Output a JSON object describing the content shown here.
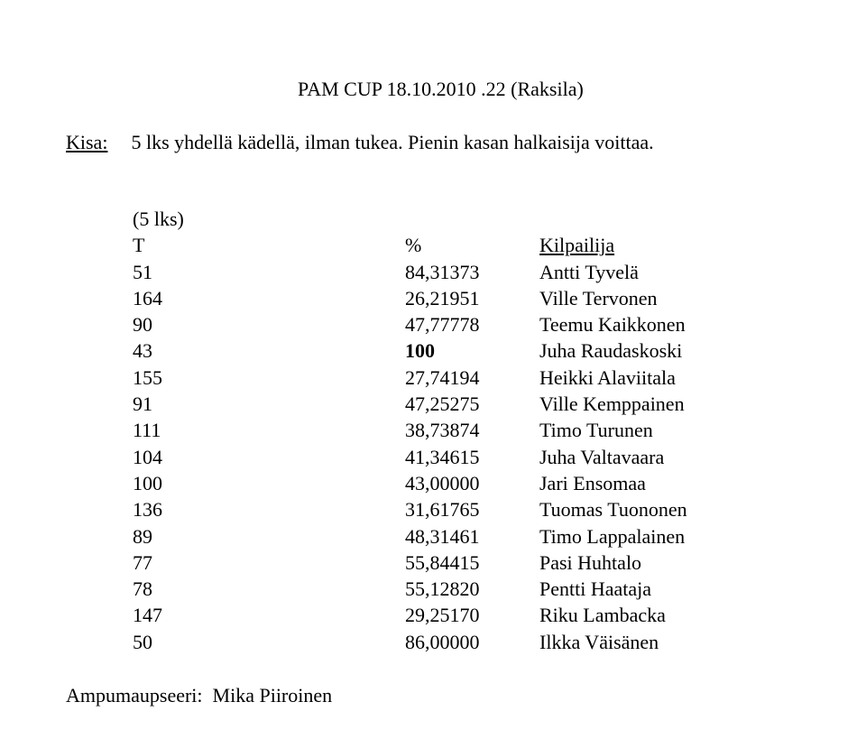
{
  "title": "PAM CUP  18.10.2010  .22  (Raksila)",
  "kisa": {
    "label": "Kisa:",
    "text": "5 lks yhdellä kädellä, ilman tukea. Pienin kasan halkaisija voittaa."
  },
  "table": {
    "caption": "(5 lks)",
    "headers": [
      "T",
      "%",
      "Kilpailija"
    ],
    "rows": [
      {
        "t": "51",
        "pct": "84,31373",
        "name": "Antti Tyvelä"
      },
      {
        "t": "164",
        "pct": "26,21951",
        "name": "Ville Tervonen"
      },
      {
        "t": "90",
        "pct": "47,77778",
        "name": "Teemu Kaikkonen"
      },
      {
        "t": "43",
        "pct": "100",
        "name": "Juha Raudaskoski",
        "bold": true
      },
      {
        "t": "155",
        "pct": "27,74194",
        "name": "Heikki Alaviitala"
      },
      {
        "t": "91",
        "pct": "47,25275",
        "name": "Ville Kemppainen"
      },
      {
        "t": "111",
        "pct": "38,73874",
        "name": "Timo Turunen"
      },
      {
        "t": "104",
        "pct": "41,34615",
        "name": "Juha Valtavaara"
      },
      {
        "t": "100",
        "pct": "43,00000",
        "name": "Jari Ensomaa"
      },
      {
        "t": "136",
        "pct": "31,61765",
        "name": "Tuomas Tuononen"
      },
      {
        "t": "89",
        "pct": "48,31461",
        "name": "Timo Lappalainen"
      },
      {
        "t": "77",
        "pct": "55,84415",
        "name": "Pasi Huhtalo"
      },
      {
        "t": "78",
        "pct": "55,12820",
        "name": "Pentti Haataja"
      },
      {
        "t": "147",
        "pct": "29,25170",
        "name": "Riku Lambacka"
      },
      {
        "t": "50",
        "pct": "86,00000",
        "name": "Ilkka Väisänen"
      }
    ]
  },
  "footer": {
    "label": "Ampumaupseeri:",
    "name": "Mika Piiroinen"
  }
}
